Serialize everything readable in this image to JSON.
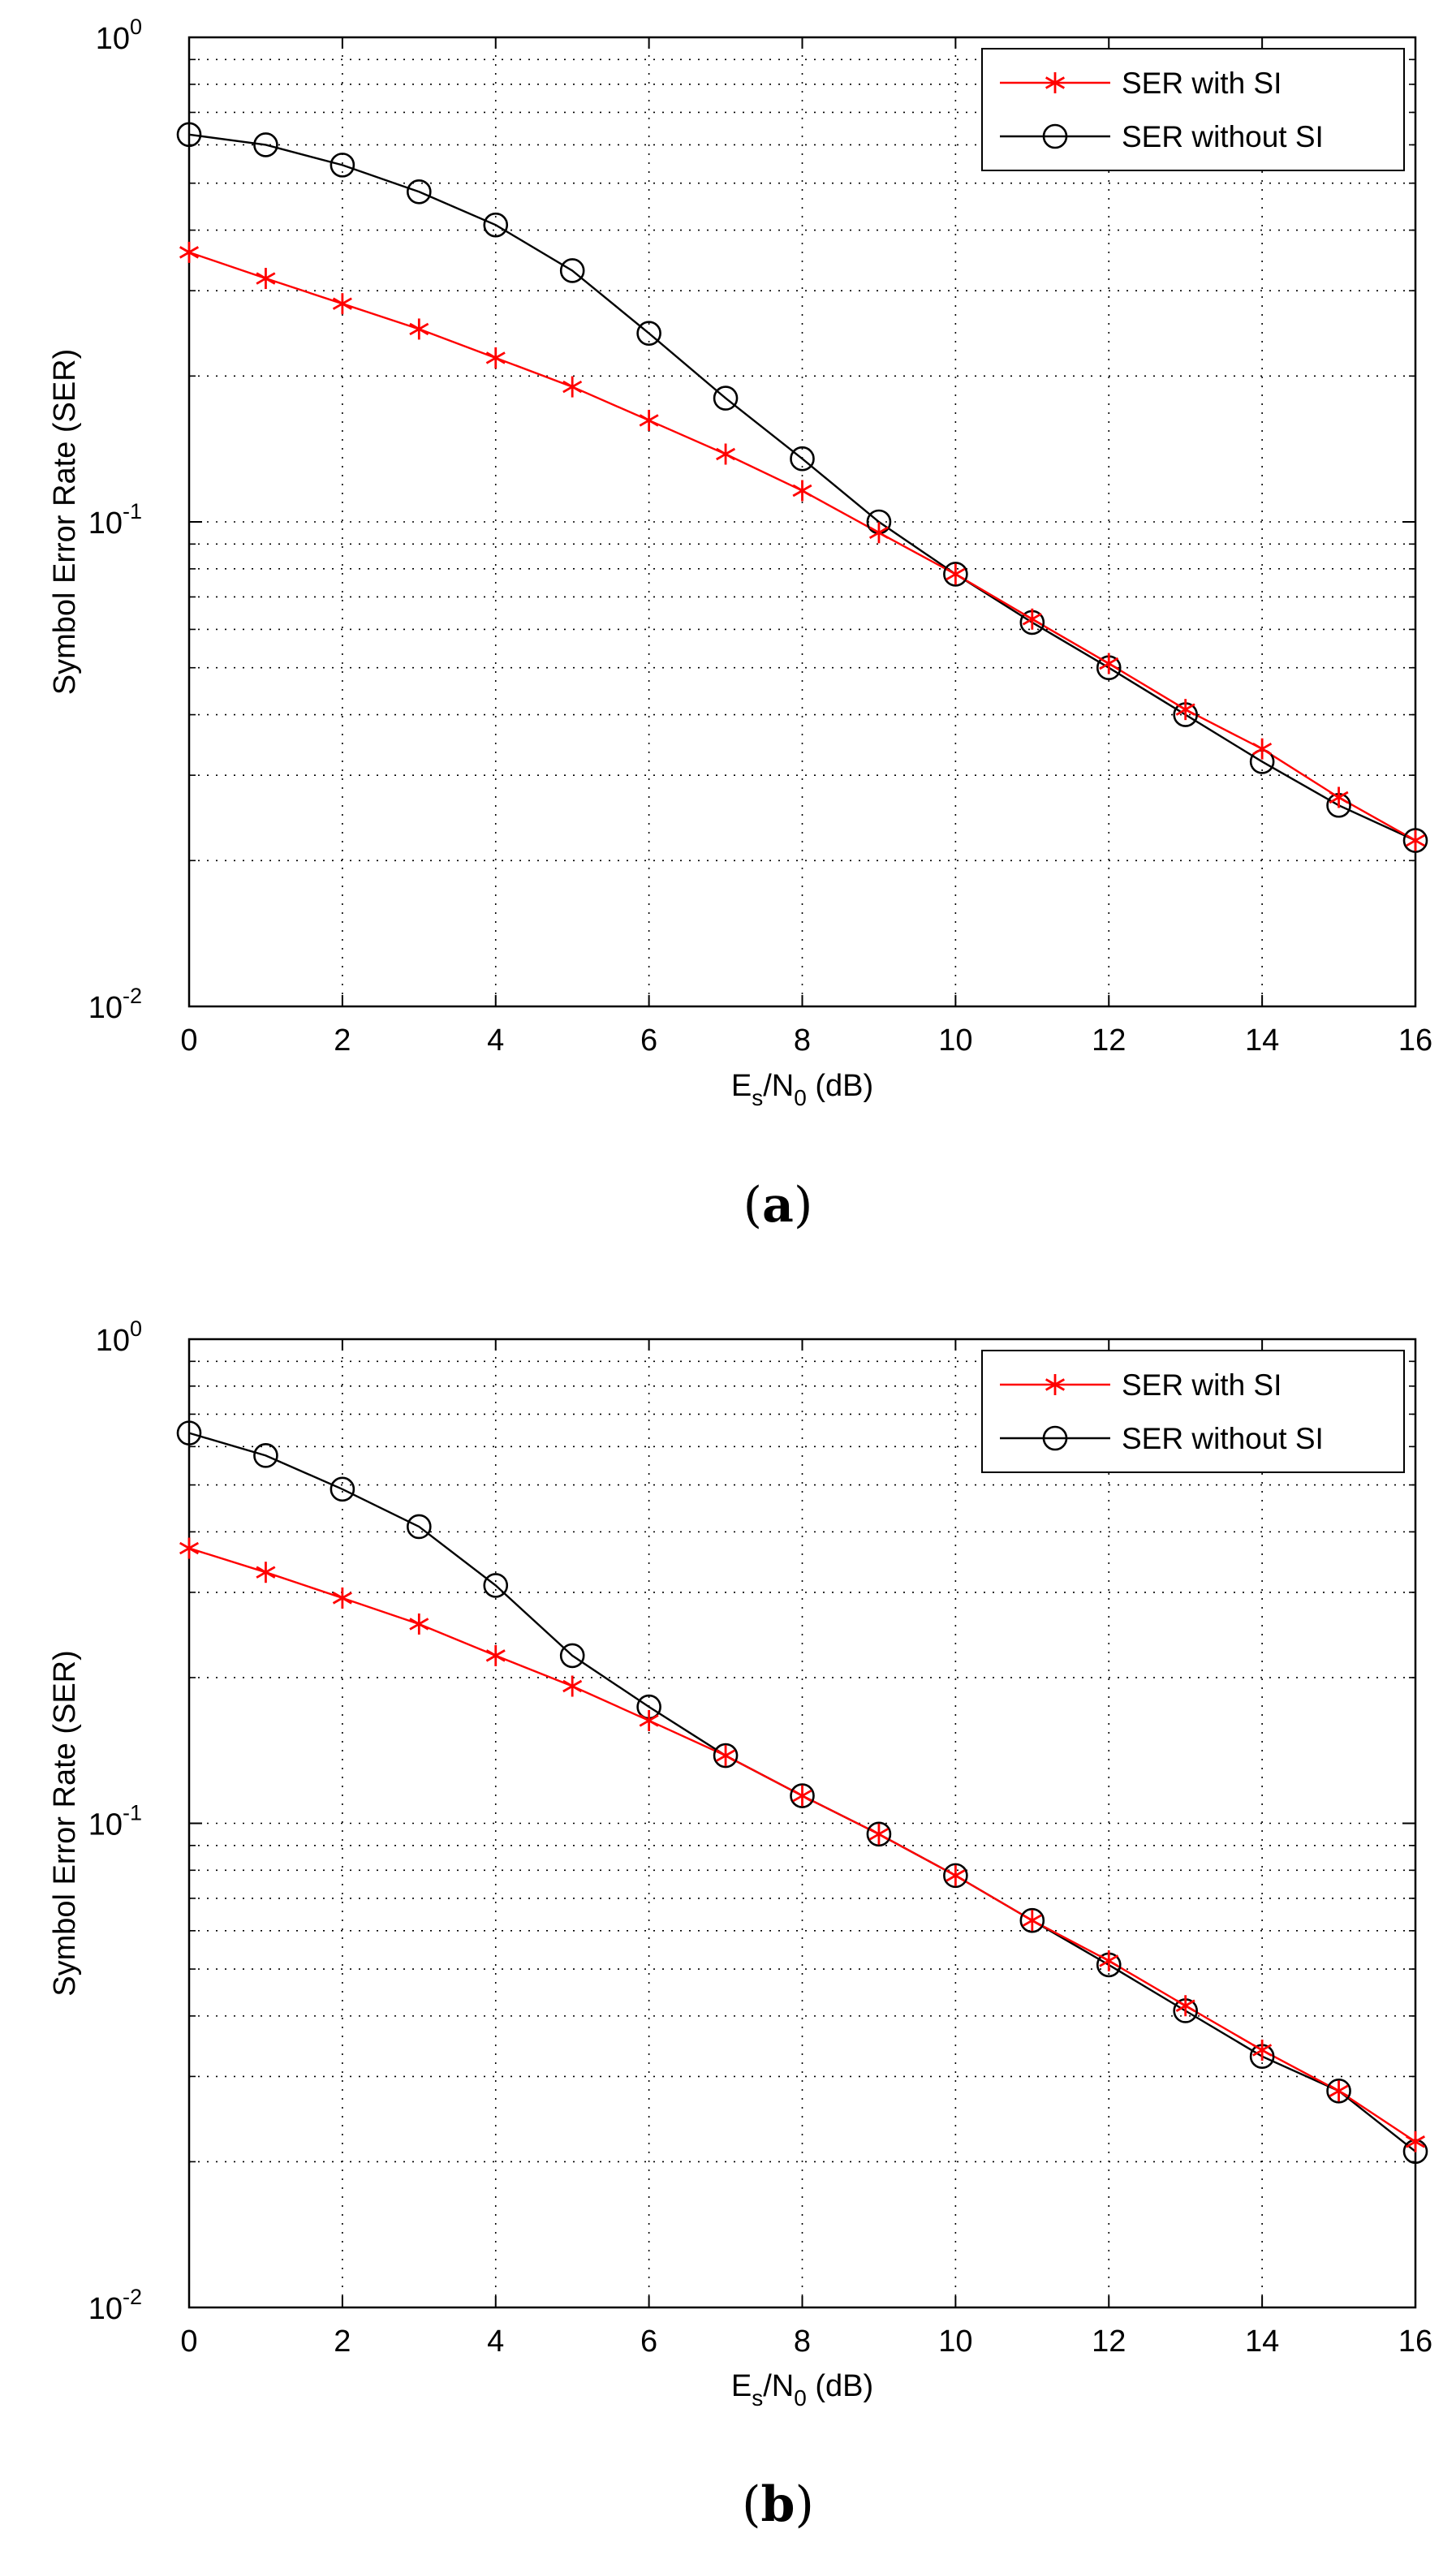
{
  "chart_data": [
    {
      "type": "line",
      "panel_label": "a",
      "title": "",
      "xlabel": {
        "main": "E",
        "sub1": "s",
        "mid": "/N",
        "sub2": "0",
        "tail": " (dB)"
      },
      "ylabel": "Symbol Error Rate (SER)",
      "xlim": [
        0,
        16
      ],
      "ylim": [
        0.01,
        1
      ],
      "yscale": "log",
      "grid": true,
      "legend_position": "top-right",
      "x_ticks": [
        "0",
        "2",
        "4",
        "6",
        "8",
        "10",
        "12",
        "14",
        "16"
      ],
      "y_ticks": [
        {
          "base": "10",
          "exp": "0"
        },
        {
          "base": "10",
          "exp": "-1"
        },
        {
          "base": "10",
          "exp": "-2"
        }
      ],
      "x": [
        0,
        1,
        2,
        3,
        4,
        5,
        6,
        7,
        8,
        9,
        10,
        11,
        12,
        13,
        14,
        15,
        16
      ],
      "series": [
        {
          "name": "SER with SI",
          "color": "#ff0000",
          "marker": "asterisk",
          "values": [
            0.36,
            0.318,
            0.282,
            0.25,
            0.218,
            0.19,
            0.162,
            0.138,
            0.116,
            0.095,
            0.078,
            0.063,
            0.051,
            0.041,
            0.034,
            0.027,
            0.022
          ]
        },
        {
          "name": "SER without SI",
          "color": "#000000",
          "marker": "circle",
          "values": [
            0.63,
            0.6,
            0.545,
            0.48,
            0.41,
            0.33,
            0.245,
            0.18,
            0.135,
            0.1,
            0.078,
            0.062,
            0.05,
            0.04,
            0.032,
            0.026,
            0.022
          ]
        }
      ]
    },
    {
      "type": "line",
      "panel_label": "b",
      "title": "",
      "xlabel": {
        "main": "E",
        "sub1": "s",
        "mid": "/N",
        "sub2": "0",
        "tail": " (dB)"
      },
      "ylabel": "Symbol Error Rate (SER)",
      "xlim": [
        0,
        16
      ],
      "ylim": [
        0.01,
        1
      ],
      "yscale": "log",
      "grid": true,
      "legend_position": "top-right",
      "x_ticks": [
        "0",
        "2",
        "4",
        "6",
        "8",
        "10",
        "12",
        "14",
        "16"
      ],
      "y_ticks": [
        {
          "base": "10",
          "exp": "0"
        },
        {
          "base": "10",
          "exp": "-1"
        },
        {
          "base": "10",
          "exp": "-2"
        }
      ],
      "x": [
        0,
        1,
        2,
        3,
        4,
        5,
        6,
        7,
        8,
        9,
        10,
        11,
        12,
        13,
        14,
        15,
        16
      ],
      "series": [
        {
          "name": "SER with SI",
          "color": "#ff0000",
          "marker": "asterisk",
          "values": [
            0.37,
            0.33,
            0.292,
            0.258,
            0.222,
            0.192,
            0.163,
            0.138,
            0.114,
            0.095,
            0.078,
            0.063,
            0.052,
            0.042,
            0.034,
            0.028,
            0.022
          ]
        },
        {
          "name": "SER without SI",
          "color": "#000000",
          "marker": "circle",
          "values": [
            0.64,
            0.575,
            0.49,
            0.41,
            0.31,
            0.222,
            0.174,
            0.138,
            0.114,
            0.095,
            0.078,
            0.063,
            0.051,
            0.041,
            0.033,
            0.028,
            0.021
          ]
        }
      ]
    }
  ]
}
